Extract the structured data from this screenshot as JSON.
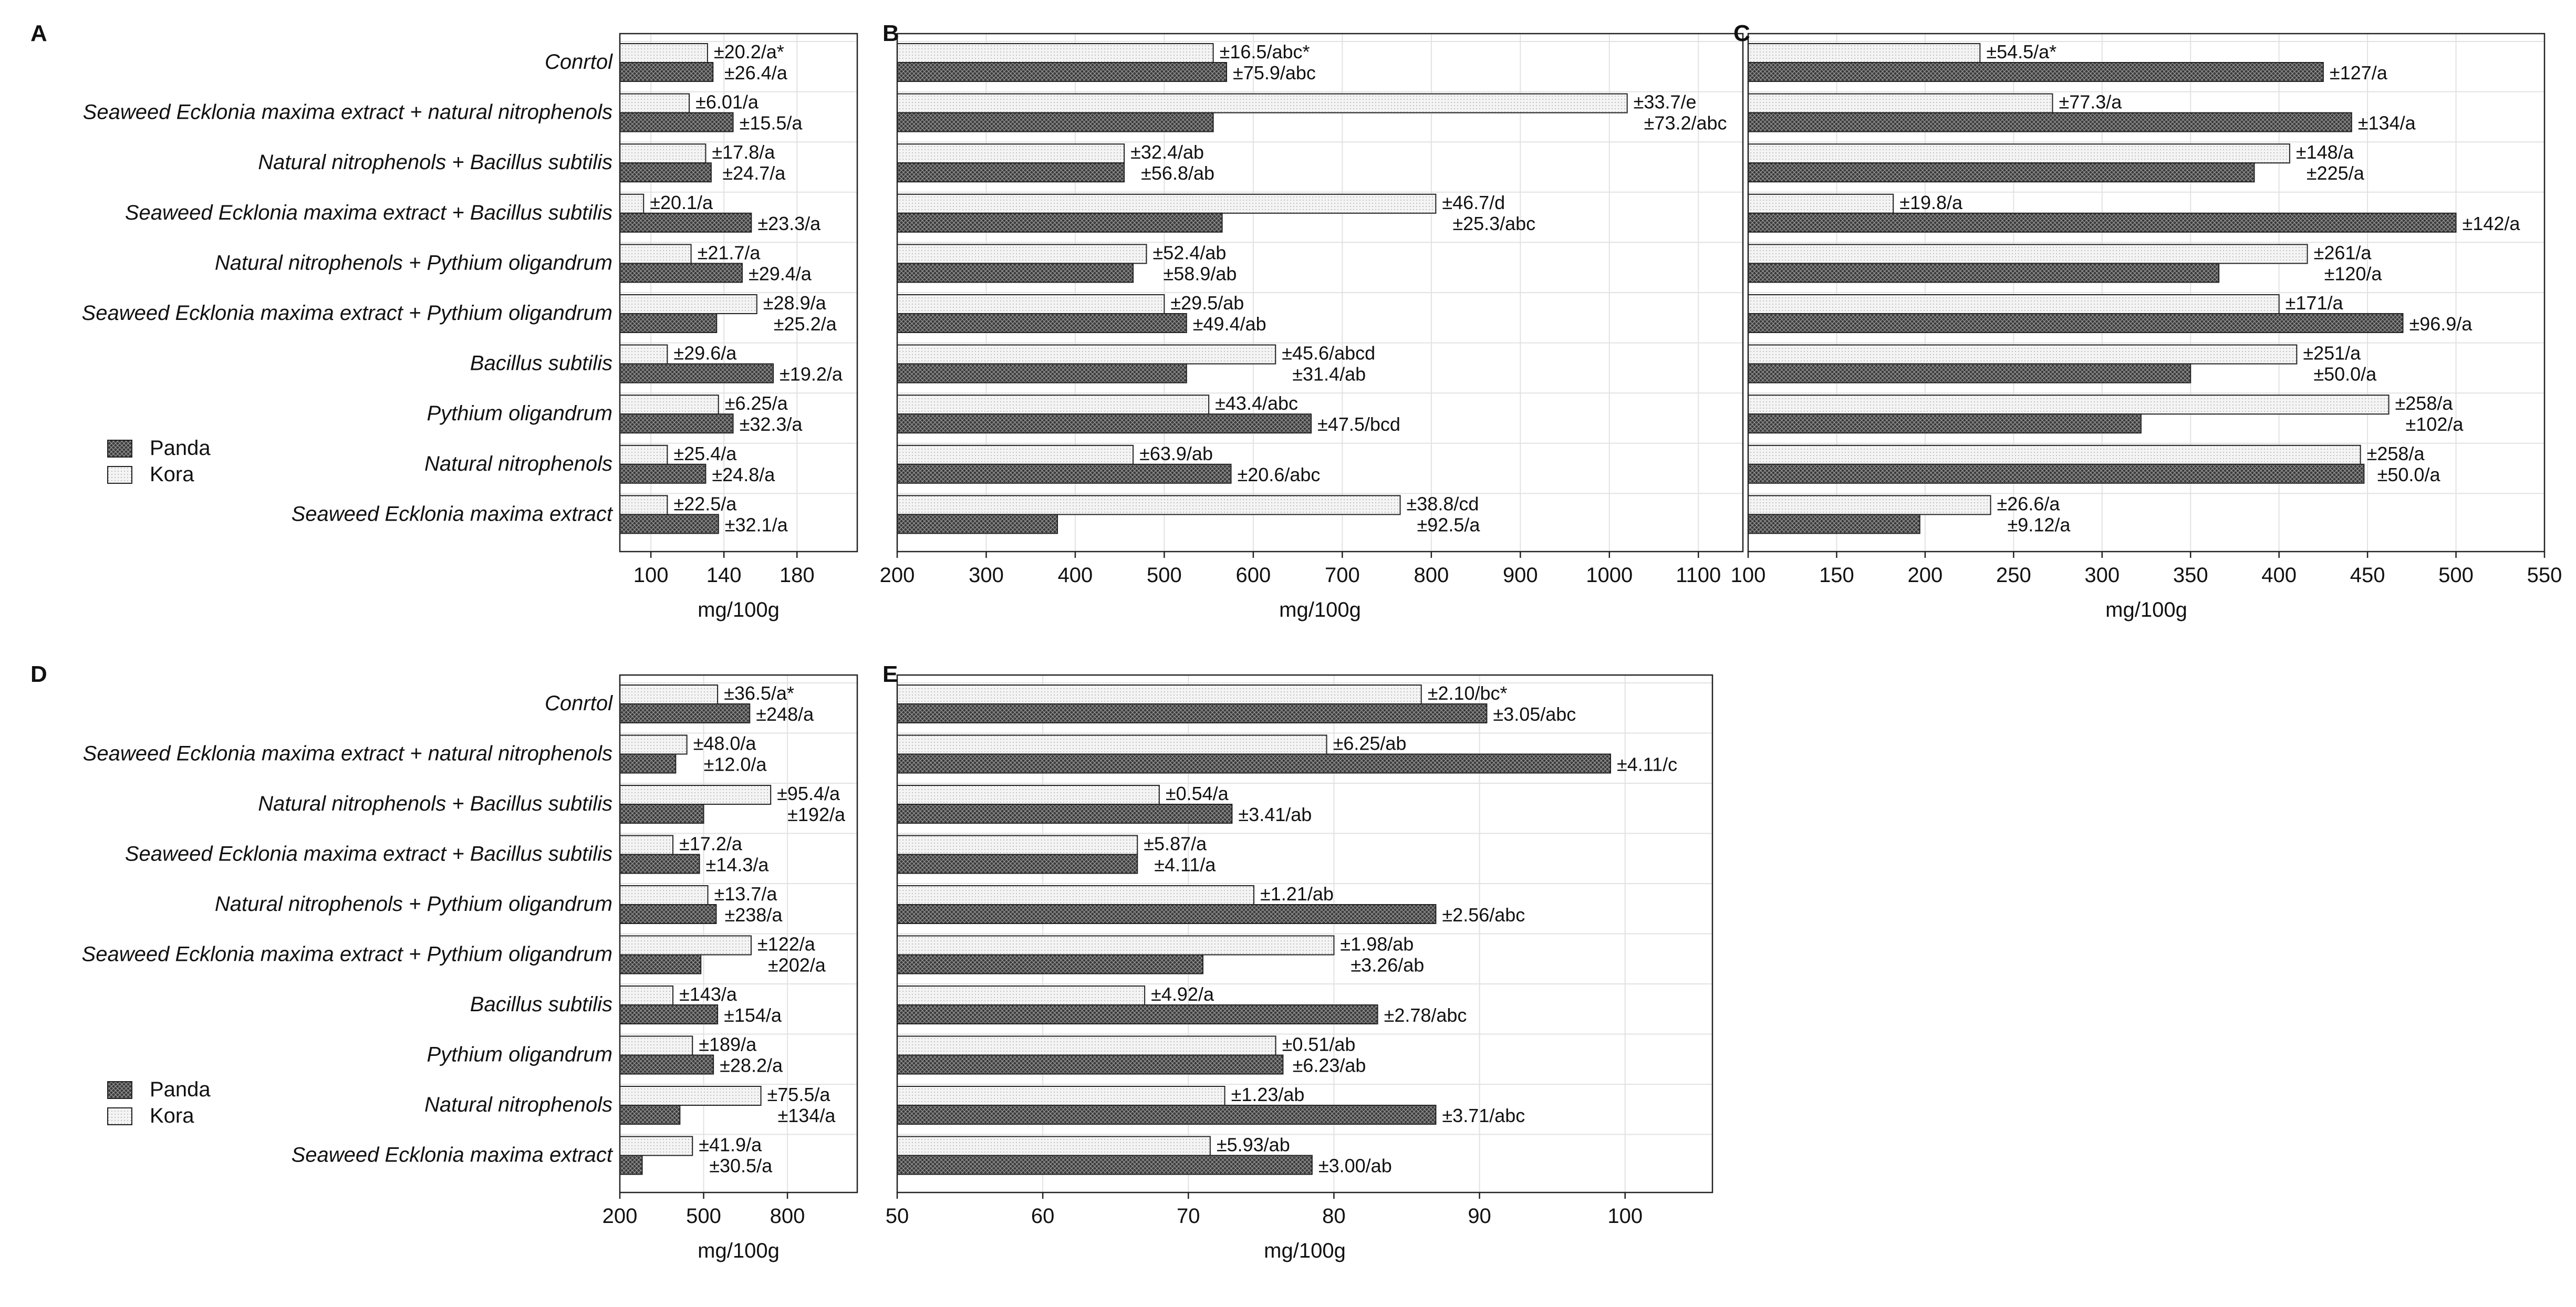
{
  "figure": {
    "title": ""
  },
  "colors": {
    "panda_fill": "#3a3a3a",
    "kora_fill": "#f2f2f2",
    "axis": "#222222",
    "grid": "#e2e2e2"
  },
  "legend": {
    "panda": "Panda",
    "kora": "Kora"
  },
  "chart_data": [
    {
      "type": "bar",
      "orientation": "horizontal",
      "panel": "A",
      "xlabel": "mg/100g",
      "xlim": [
        83,
        213
      ],
      "xticks": [
        100,
        140,
        180
      ],
      "categories": [
        "Conrtol",
        "Seaweed Ecklonia maxima extract + natural nitrophenols",
        "Natural nitrophenols + Bacillus subtilis",
        "Seaweed Ecklonia maxima extract + Bacillus subtilis",
        "Natural nitrophenols + Pythium oligandrum",
        "Seaweed Ecklonia maxima extract + Pythium oligandrum",
        "Bacillus subtilis",
        "Pythium oligandrum",
        "Natural nitrophenols",
        "Seaweed Ecklonia maxima extract"
      ],
      "series": [
        {
          "name": "Kora",
          "values": [
            131,
            121,
            130,
            96,
            122,
            158,
            109,
            137,
            109,
            109
          ],
          "labels": [
            "±20.2/a*",
            "±6.01/a",
            "±17.8/a",
            "±20.1/a",
            "±21.7/a",
            "±28.9/a",
            "±29.6/a",
            "±6.25/a",
            "±25.4/a",
            "±22.5/a"
          ]
        },
        {
          "name": "Panda",
          "values": [
            134,
            145,
            133,
            155,
            150,
            136,
            167,
            145,
            130,
            137
          ],
          "labels": [
            "±26.4/a",
            "±15.5/a",
            "±24.7/a",
            "±23.3/a",
            "±29.4/a",
            "±25.2/a",
            "±19.2/a",
            "±32.3/a",
            "±24.8/a",
            "±32.1/a"
          ]
        }
      ]
    },
    {
      "type": "bar",
      "orientation": "horizontal",
      "panel": "B",
      "xlabel": "mg/100g",
      "xlim": [
        200,
        1150
      ],
      "xticks": [
        200,
        300,
        400,
        500,
        600,
        700,
        800,
        900,
        1000,
        1100
      ],
      "categories": [
        "Conrtol",
        "Seaweed Ecklonia maxima extract + natural nitrophenols",
        "Natural nitrophenols + Bacillus subtilis",
        "Seaweed Ecklonia maxima extract + Bacillus subtilis",
        "Natural nitrophenols + Pythium oligandrum",
        "Seaweed Ecklonia maxima extract + Pythium oligandrum",
        "Bacillus subtilis",
        "Pythium oligandrum",
        "Natural nitrophenols",
        "Seaweed Ecklonia maxima extract"
      ],
      "series": [
        {
          "name": "Kora",
          "values": [
            555,
            1020,
            455,
            805,
            480,
            500,
            625,
            550,
            465,
            765
          ],
          "labels": [
            "±16.5/abc*",
            "±33.7/e",
            "±32.4/ab",
            "±46.7/d",
            "±52.4/ab",
            "±29.5/ab",
            "±45.6/abcd",
            "±43.4/abc",
            "±63.9/ab",
            "±38.8/cd"
          ]
        },
        {
          "name": "Panda",
          "values": [
            570,
            555,
            455,
            565,
            465,
            525,
            525,
            665,
            575,
            380
          ],
          "labels": [
            "±75.9/abc",
            "±73.2/abc",
            "±56.8/ab",
            "±25.3/abc",
            "±58.9/ab",
            "±49.4/ab",
            "±31.4/ab",
            "±47.5/bcd",
            "±20.6/abc",
            "±92.5/a"
          ]
        }
      ]
    },
    {
      "type": "bar",
      "orientation": "horizontal",
      "panel": "C",
      "xlabel": "mg/100g",
      "xlim": [
        100,
        550
      ],
      "xticks": [
        100,
        150,
        200,
        250,
        300,
        350,
        400,
        450,
        500,
        550
      ],
      "categories": [
        "Conrtol",
        "Seaweed Ecklonia maxima extract + natural nitrophenols",
        "Natural nitrophenols + Bacillus subtilis",
        "Seaweed Ecklonia maxima extract + Bacillus subtilis",
        "Natural nitrophenols + Pythium oligandrum",
        "Seaweed Ecklonia maxima extract + Pythium oligandrum",
        "Bacillus subtilis",
        "Pythium oligandrum",
        "Natural nitrophenols",
        "Seaweed Ecklonia maxima extract"
      ],
      "series": [
        {
          "name": "Kora",
          "values": [
            231,
            272,
            406,
            182,
            416,
            400,
            410,
            462,
            446,
            237
          ],
          "labels": [
            "±54.5/a*",
            "±77.3/a",
            "±148/a",
            "±19.8/a",
            "±261/a",
            "±171/a",
            "±251/a",
            "±258/a",
            "±258/a",
            "±26.6/a"
          ]
        },
        {
          "name": "Panda",
          "values": [
            425,
            441,
            386,
            500,
            366,
            470,
            350,
            322,
            448,
            197
          ],
          "labels": [
            "±127/a",
            "±134/a",
            "±225/a",
            "±142/a",
            "±120/a",
            "±96.9/a",
            "±50.0/a",
            "±102/a",
            "±50.0/a",
            "±9.12/a"
          ]
        }
      ]
    },
    {
      "type": "bar",
      "orientation": "horizontal",
      "panel": "D",
      "xlabel": "mg/100g",
      "xlim": [
        200,
        1050
      ],
      "xticks": [
        200,
        500,
        800
      ],
      "categories": [
        "Conrtol",
        "Seaweed Ecklonia maxima extract + natural nitrophenols",
        "Natural nitrophenols + Bacillus subtilis",
        "Seaweed Ecklonia maxima extract + Bacillus subtilis",
        "Natural nitrophenols + Pythium oligandrum",
        "Seaweed Ecklonia maxima extract + Pythium oligandrum",
        "Bacillus subtilis",
        "Pythium oligandrum",
        "Natural nitrophenols",
        "Seaweed Ecklonia maxima extract"
      ],
      "series": [
        {
          "name": "Kora",
          "values": [
            550,
            440,
            740,
            390,
            515,
            670,
            390,
            460,
            705,
            460
          ],
          "labels": [
            "±36.5/a*",
            "±48.0/a",
            "±95.4/a",
            "±17.2/a",
            "±13.7/a",
            "±122/a",
            "±143/a",
            "±189/a",
            "±75.5/a",
            "±41.9/a"
          ]
        },
        {
          "name": "Panda",
          "values": [
            665,
            400,
            500,
            485,
            545,
            490,
            550,
            535,
            415,
            280
          ],
          "labels": [
            "±248/a",
            "±12.0/a",
            "±192/a",
            "±14.3/a",
            "±238/a",
            "±202/a",
            "±154/a",
            "±28.2/a",
            "±134/a",
            "±30.5/a"
          ]
        }
      ]
    },
    {
      "type": "bar",
      "orientation": "horizontal",
      "panel": "E",
      "xlabel": "mg/100g",
      "xlim": [
        50,
        106
      ],
      "xticks": [
        50,
        60,
        70,
        80,
        90,
        100
      ],
      "categories": [
        "Conrtol",
        "Seaweed Ecklonia maxima extract + natural nitrophenols",
        "Natural nitrophenols + Bacillus subtilis",
        "Seaweed Ecklonia maxima extract + Bacillus subtilis",
        "Natural nitrophenols + Pythium oligandrum",
        "Seaweed Ecklonia maxima extract + Pythium oligandrum",
        "Bacillus subtilis",
        "Pythium oligandrum",
        "Natural nitrophenols",
        "Seaweed Ecklonia maxima extract"
      ],
      "series": [
        {
          "name": "Kora",
          "values": [
            86,
            79.5,
            68,
            66.5,
            74.5,
            80,
            67,
            76,
            72.5,
            71.5
          ],
          "labels": [
            "±2.10/bc*",
            "±6.25/ab",
            "±0.54/a",
            "±5.87/a",
            "±1.21/ab",
            "±1.98/ab",
            "±4.92/a",
            "±0.51/ab",
            "±1.23/ab",
            "±5.93/ab"
          ]
        },
        {
          "name": "Panda",
          "values": [
            90.5,
            99,
            73,
            66.5,
            87,
            71,
            83,
            76.5,
            87,
            78.5
          ],
          "labels": [
            "±3.05/abc",
            "±4.11/c",
            "±3.41/ab",
            "±4.11/a",
            "±2.56/abc",
            "±3.26/ab",
            "±2.78/abc",
            "±6.23/ab",
            "±3.71/abc",
            "±3.00/ab"
          ]
        }
      ]
    }
  ]
}
